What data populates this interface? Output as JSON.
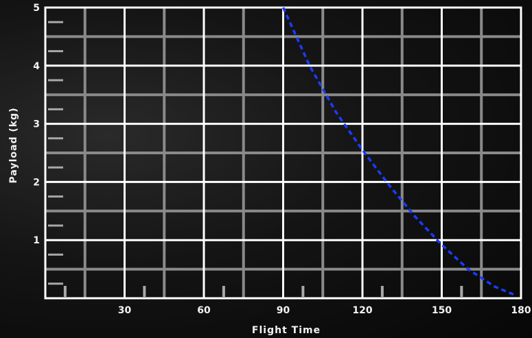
{
  "chart_data": {
    "type": "line",
    "xlabel": "Flight Time",
    "ylabel": "Payload (kg)",
    "xlim": [
      0,
      180
    ],
    "ylim": [
      0,
      5
    ],
    "x_major_ticks": [
      30,
      60,
      90,
      120,
      150,
      180
    ],
    "x_major_tick_labels": [
      "30",
      "60",
      "90",
      "120",
      "150",
      "180"
    ],
    "y_major_ticks": [
      1,
      2,
      3,
      4,
      5
    ],
    "y_major_tick_labels": [
      "1",
      "2",
      "3",
      "4",
      "5"
    ],
    "grid": true,
    "series": [
      {
        "style": "dashed",
        "color": "#1a3cff",
        "x": [
          90,
          100,
          110,
          120,
          130,
          140,
          150,
          160,
          170,
          178
        ],
        "y": [
          5.0,
          4.0,
          3.2,
          2.55,
          1.95,
          1.4,
          0.92,
          0.5,
          0.2,
          0.05
        ]
      }
    ]
  }
}
